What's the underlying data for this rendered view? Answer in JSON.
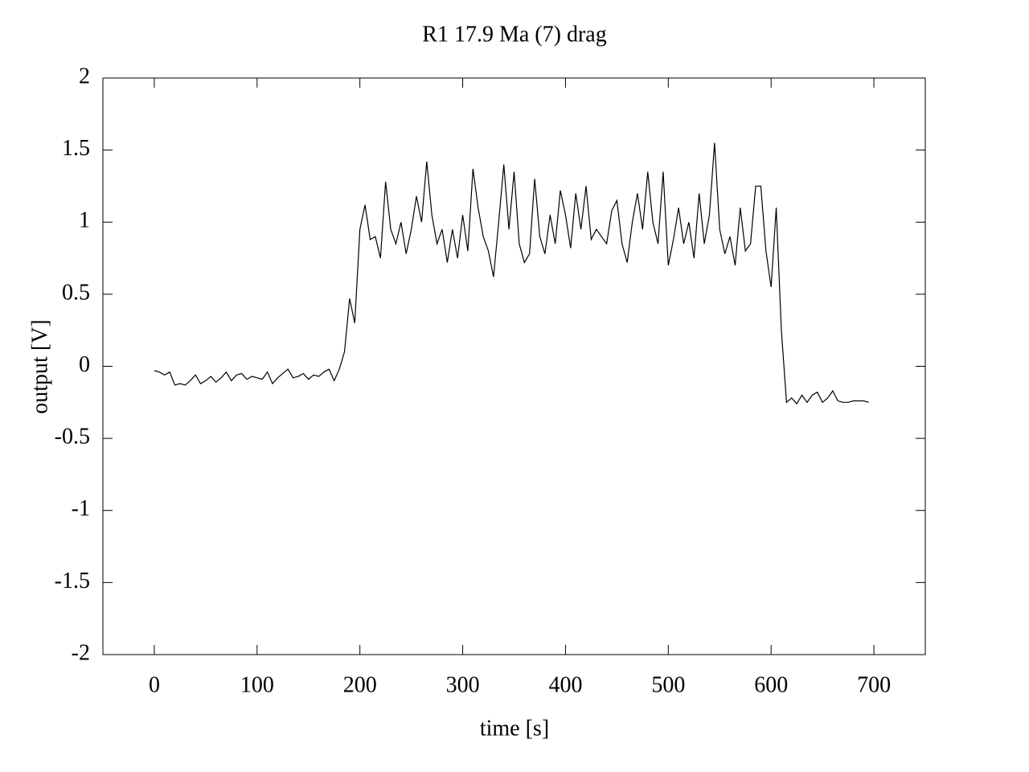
{
  "chart_data": {
    "type": "line",
    "title": "R1 17.9  Ma (7) drag",
    "x_label": "time [s]",
    "y_label": "output [V]",
    "x": [
      0,
      5,
      10,
      15,
      20,
      25,
      30,
      35,
      40,
      45,
      50,
      55,
      60,
      65,
      70,
      75,
      80,
      85,
      90,
      95,
      100,
      105,
      110,
      115,
      120,
      125,
      130,
      135,
      140,
      145,
      150,
      155,
      160,
      165,
      170,
      175,
      180,
      185,
      190,
      195,
      200,
      205,
      210,
      215,
      220,
      225,
      230,
      235,
      240,
      245,
      250,
      255,
      260,
      265,
      270,
      275,
      280,
      285,
      290,
      295,
      300,
      305,
      310,
      315,
      320,
      325,
      330,
      335,
      340,
      345,
      350,
      355,
      360,
      365,
      370,
      375,
      380,
      385,
      390,
      395,
      400,
      405,
      410,
      415,
      420,
      425,
      430,
      435,
      440,
      445,
      450,
      455,
      460,
      465,
      470,
      475,
      480,
      485,
      490,
      495,
      500,
      505,
      510,
      515,
      520,
      525,
      530,
      535,
      540,
      545,
      550,
      555,
      560,
      565,
      570,
      575,
      580,
      585,
      590,
      595,
      600,
      605,
      610,
      615,
      620,
      625,
      630,
      635,
      640,
      645,
      650,
      655,
      660,
      665,
      670,
      675,
      680,
      685,
      690,
      695
    ],
    "values": [
      -0.03,
      -0.04,
      -0.06,
      -0.04,
      -0.13,
      -0.12,
      -0.13,
      -0.1,
      -0.06,
      -0.12,
      -0.1,
      -0.07,
      -0.11,
      -0.08,
      -0.04,
      -0.1,
      -0.06,
      -0.05,
      -0.09,
      -0.07,
      -0.08,
      -0.09,
      -0.04,
      -0.12,
      -0.08,
      -0.05,
      -0.02,
      -0.08,
      -0.07,
      -0.05,
      -0.09,
      -0.06,
      -0.07,
      -0.04,
      -0.02,
      -0.1,
      -0.02,
      0.1,
      0.47,
      0.3,
      0.95,
      1.12,
      0.88,
      0.9,
      0.75,
      1.28,
      0.95,
      0.85,
      1.0,
      0.78,
      0.95,
      1.18,
      1.0,
      1.42,
      1.05,
      0.85,
      0.95,
      0.72,
      0.95,
      0.75,
      1.05,
      0.8,
      1.37,
      1.1,
      0.9,
      0.8,
      0.62,
      1.0,
      1.4,
      0.95,
      1.35,
      0.85,
      0.72,
      0.78,
      1.3,
      0.9,
      0.78,
      1.05,
      0.85,
      1.22,
      1.05,
      0.82,
      1.2,
      0.95,
      1.25,
      0.88,
      0.95,
      0.9,
      0.85,
      1.08,
      1.15,
      0.85,
      0.72,
      1.0,
      1.2,
      0.95,
      1.35,
      1.0,
      0.85,
      1.35,
      0.7,
      0.88,
      1.1,
      0.85,
      1.0,
      0.75,
      1.2,
      0.85,
      1.05,
      1.55,
      0.95,
      0.78,
      0.9,
      0.7,
      1.1,
      0.8,
      0.85,
      1.25,
      1.25,
      0.8,
      0.55,
      1.1,
      0.25,
      -0.25,
      -0.22,
      -0.26,
      -0.2,
      -0.25,
      -0.2,
      -0.18,
      -0.25,
      -0.22,
      -0.17,
      -0.24,
      -0.25,
      -0.25,
      -0.24,
      -0.24,
      -0.24,
      -0.25
    ],
    "color": "#000000",
    "xlim": [
      -50,
      750
    ],
    "ylim": [
      -2,
      2
    ],
    "xticks": [
      0,
      100,
      200,
      300,
      400,
      500,
      600,
      700
    ],
    "yticks": [
      -2,
      -1.5,
      -1,
      -0.5,
      0,
      0.5,
      1,
      1.5,
      2
    ],
    "grid": false
  }
}
